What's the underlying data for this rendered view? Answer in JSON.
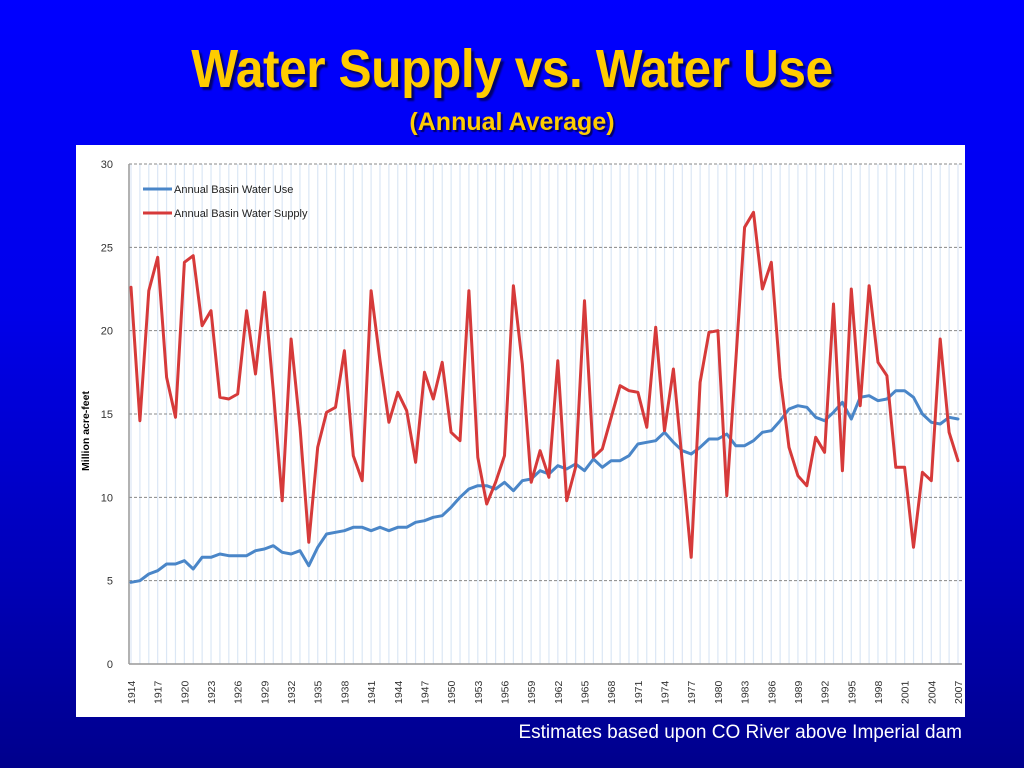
{
  "slide": {
    "title": "Water Supply vs. Water Use",
    "subtitle": "(Annual Average)",
    "footer": "Estimates based upon CO River above Imperial dam"
  },
  "colors": {
    "title": "#ffcc00",
    "use_series": "#4a86c8",
    "supply_series": "#d63a3a",
    "gridline": "#888888",
    "year_grid": "#dbe7f5"
  },
  "chart_data": {
    "type": "line",
    "title": "",
    "xlabel": "",
    "ylabel": "Million acre-feet",
    "ylim": [
      0,
      30
    ],
    "yticks": [
      0,
      5,
      10,
      15,
      20,
      25,
      30
    ],
    "xlim": [
      1914,
      2007
    ],
    "xtick_labels": [
      "1914",
      "1917",
      "1920",
      "1923",
      "1926",
      "1929",
      "1932",
      "1935",
      "1938",
      "1941",
      "1944",
      "1947",
      "1950",
      "1953",
      "1956",
      "1959",
      "1962",
      "1965",
      "1968",
      "1971",
      "1974",
      "1977",
      "1980",
      "1983",
      "1986",
      "1989",
      "1992",
      "1995",
      "1998",
      "2001",
      "2004",
      "2007"
    ],
    "grid": "horizontal dashed major gridlines; vertical gridline per year",
    "legend": "top-left",
    "x": [
      1914,
      1915,
      1916,
      1917,
      1918,
      1919,
      1920,
      1921,
      1922,
      1923,
      1924,
      1925,
      1926,
      1927,
      1928,
      1929,
      1930,
      1931,
      1932,
      1933,
      1934,
      1935,
      1936,
      1937,
      1938,
      1939,
      1940,
      1941,
      1942,
      1943,
      1944,
      1945,
      1946,
      1947,
      1948,
      1949,
      1950,
      1951,
      1952,
      1953,
      1954,
      1955,
      1956,
      1957,
      1958,
      1959,
      1960,
      1961,
      1962,
      1963,
      1964,
      1965,
      1966,
      1967,
      1968,
      1969,
      1970,
      1971,
      1972,
      1973,
      1974,
      1975,
      1976,
      1977,
      1978,
      1979,
      1980,
      1981,
      1982,
      1983,
      1984,
      1985,
      1986,
      1987,
      1988,
      1989,
      1990,
      1991,
      1992,
      1993,
      1994,
      1995,
      1996,
      1997,
      1998,
      1999,
      2000,
      2001,
      2002,
      2003,
      2004,
      2005,
      2006,
      2007
    ],
    "series": [
      {
        "name": "Annual Basin Water Use",
        "color": "#4a86c8",
        "values": [
          4.9,
          5.0,
          5.4,
          5.6,
          6.0,
          6.0,
          6.2,
          5.7,
          6.4,
          6.4,
          6.6,
          6.5,
          6.5,
          6.5,
          6.8,
          6.9,
          7.1,
          6.7,
          6.6,
          6.8,
          5.9,
          7.0,
          7.8,
          7.9,
          8.0,
          8.2,
          8.2,
          8.0,
          8.2,
          8.0,
          8.2,
          8.2,
          8.5,
          8.6,
          8.8,
          8.9,
          9.4,
          10.0,
          10.5,
          10.7,
          10.7,
          10.5,
          10.9,
          10.4,
          11.0,
          11.1,
          11.6,
          11.4,
          11.9,
          11.7,
          12.0,
          11.6,
          12.3,
          11.8,
          12.2,
          12.2,
          12.5,
          13.2,
          13.3,
          13.4,
          13.9,
          13.3,
          12.8,
          12.6,
          13.0,
          13.5,
          13.5,
          13.8,
          13.1,
          13.1,
          13.4,
          13.9,
          14.0,
          14.6,
          15.3,
          15.5,
          15.4,
          14.8,
          14.6,
          15.1,
          15.7,
          14.7,
          16.0,
          16.1,
          15.8,
          15.9,
          16.4,
          16.4,
          16.0,
          15.0,
          14.5,
          14.4,
          14.8,
          14.7
        ]
      },
      {
        "name": "Annual Basin Water Supply",
        "color": "#d63a3a",
        "values": [
          22.6,
          14.6,
          22.4,
          24.4,
          17.2,
          14.8,
          24.1,
          24.5,
          20.3,
          21.2,
          16.0,
          15.9,
          16.2,
          21.2,
          17.4,
          22.3,
          16.4,
          9.8,
          19.5,
          14.2,
          7.3,
          13.0,
          15.1,
          15.4,
          18.8,
          12.5,
          11.0,
          22.4,
          18.2,
          14.5,
          16.3,
          15.2,
          12.1,
          17.5,
          15.9,
          18.1,
          13.9,
          13.4,
          22.4,
          12.4,
          9.6,
          10.9,
          12.5,
          22.7,
          18.0,
          10.9,
          12.8,
          11.2,
          18.2,
          9.8,
          11.8,
          21.8,
          12.4,
          12.9,
          14.8,
          16.7,
          16.4,
          16.3,
          14.2,
          20.2,
          14.0,
          17.7,
          12.1,
          6.4,
          16.9,
          19.9,
          20.0,
          10.1,
          18.1,
          26.2,
          27.1,
          22.5,
          24.1,
          17.2,
          13.0,
          11.3,
          10.7,
          13.6,
          12.7,
          21.6,
          11.6,
          22.5,
          15.5,
          22.7,
          18.1,
          17.3,
          11.8,
          11.8,
          7.0,
          11.5,
          11.0,
          19.5,
          13.9,
          12.2
        ]
      }
    ]
  }
}
